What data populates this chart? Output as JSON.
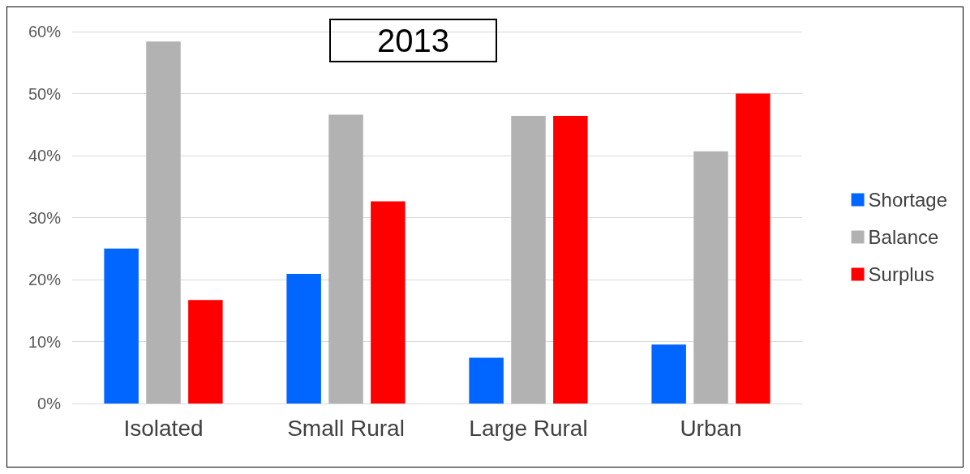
{
  "chart_data": {
    "type": "bar",
    "title": "2013",
    "categories": [
      "Isolated",
      "Small Rural",
      "Large Rural",
      "Urban"
    ],
    "series": [
      {
        "name": "Shortage",
        "color": "#0066ff",
        "values": [
          25.0,
          20.9,
          7.4,
          9.5
        ]
      },
      {
        "name": "Balance",
        "color": "#b2b2b2",
        "values": [
          58.4,
          46.6,
          46.4,
          40.7
        ]
      },
      {
        "name": "Surplus",
        "color": "#ff0000",
        "values": [
          16.7,
          32.6,
          46.4,
          50.0
        ]
      }
    ],
    "ylim": [
      0,
      60
    ],
    "yticks": [
      {
        "value": 0,
        "label": "0%"
      },
      {
        "value": 10,
        "label": "10%"
      },
      {
        "value": 20,
        "label": "20%"
      },
      {
        "value": 30,
        "label": "30%"
      },
      {
        "value": 40,
        "label": "40%"
      },
      {
        "value": 50,
        "label": "50%"
      },
      {
        "value": 60,
        "label": "60%"
      }
    ],
    "grid": "y",
    "legend": "right"
  }
}
